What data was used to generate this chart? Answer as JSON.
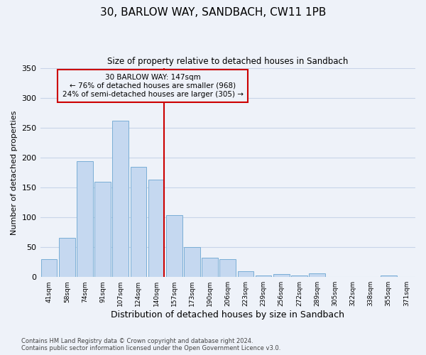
{
  "title": "30, BARLOW WAY, SANDBACH, CW11 1PB",
  "subtitle": "Size of property relative to detached houses in Sandbach",
  "xlabel": "Distribution of detached houses by size in Sandbach",
  "ylabel": "Number of detached properties",
  "bar_labels": [
    "41sqm",
    "58sqm",
    "74sqm",
    "91sqm",
    "107sqm",
    "124sqm",
    "140sqm",
    "157sqm",
    "173sqm",
    "190sqm",
    "206sqm",
    "223sqm",
    "239sqm",
    "256sqm",
    "272sqm",
    "289sqm",
    "305sqm",
    "322sqm",
    "338sqm",
    "355sqm",
    "371sqm"
  ],
  "bar_values": [
    30,
    65,
    194,
    160,
    261,
    184,
    163,
    103,
    50,
    32,
    30,
    10,
    3,
    5,
    3,
    6,
    0,
    0,
    0,
    3,
    0
  ],
  "bar_color": "#c5d8f0",
  "bar_edge_color": "#7aaed6",
  "property_line_label": "30 BARLOW WAY: 147sqm",
  "annotation_line1": "← 76% of detached houses are smaller (968)",
  "annotation_line2": "24% of semi-detached houses are larger (305) →",
  "vline_color": "#cc0000",
  "annotation_box_edge": "#cc0000",
  "ylim": [
    0,
    350
  ],
  "yticks": [
    0,
    50,
    100,
    150,
    200,
    250,
    300,
    350
  ],
  "grid_color": "#c8d4e8",
  "background_color": "#eef2f9",
  "footer_line1": "Contains HM Land Registry data © Crown copyright and database right 2024.",
  "footer_line2": "Contains public sector information licensed under the Open Government Licence v3.0."
}
